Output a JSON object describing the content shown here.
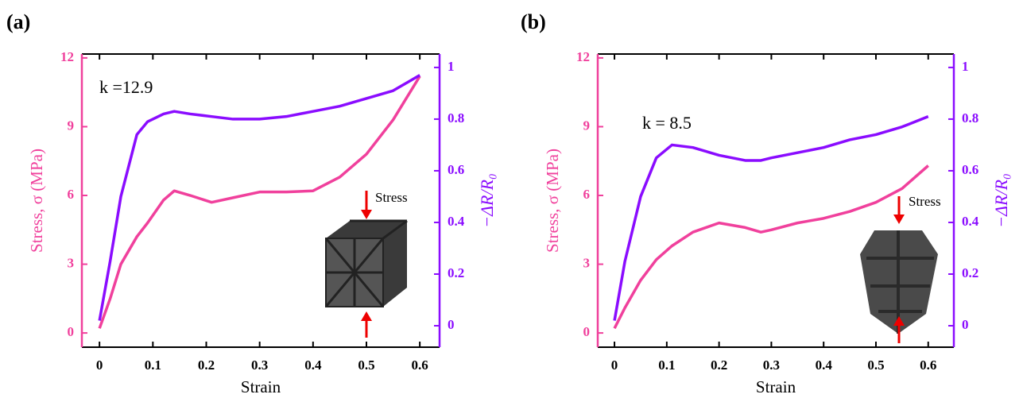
{
  "chart_data": [
    {
      "type": "line",
      "title": "(a)",
      "x_label": "Strain",
      "y_label": "Stress, σ (MPa)",
      "y2_label": "−ΔR/R₀",
      "annotations": [
        "k =12.9",
        "Stress"
      ],
      "x": [
        0,
        0.02,
        0.04,
        0.07,
        0.09,
        0.12,
        0.14,
        0.17,
        0.21,
        0.25,
        0.3,
        0.35,
        0.4,
        0.45,
        0.5,
        0.55,
        0.6
      ],
      "series": [
        {
          "name": "Stress",
          "color": "#f0409c",
          "axis": "y",
          "values": [
            0.2,
            1.5,
            3.0,
            4.2,
            4.8,
            5.8,
            6.2,
            6.0,
            5.7,
            5.9,
            6.15,
            6.15,
            6.2,
            6.8,
            7.8,
            9.3,
            11.2
          ]
        },
        {
          "name": "−ΔR/R₀",
          "color": "#8a0cff",
          "axis": "y2",
          "values": [
            0.02,
            0.25,
            0.5,
            0.74,
            0.79,
            0.82,
            0.83,
            0.82,
            0.81,
            0.8,
            0.8,
            0.81,
            0.83,
            0.85,
            0.88,
            0.91,
            0.97
          ]
        }
      ],
      "xlim": [
        -0.033,
        0.637
      ],
      "xticks": [
        0,
        0.1,
        0.2,
        0.3,
        0.4,
        0.5,
        0.6
      ],
      "ylim": [
        -0.62,
        12.17
      ],
      "yticks": [
        0,
        3,
        6,
        9,
        12
      ],
      "y2lim": [
        -0.083,
        1.052
      ],
      "y2ticks": [
        0,
        0.2,
        0.4,
        0.6,
        0.8,
        1
      ]
    },
    {
      "type": "line",
      "title": "(b)",
      "x_label": "Strain",
      "y_label": "Stress, σ (MPa)",
      "y2_label": "−ΔR/R₀",
      "annotations": [
        "k = 8.5",
        "Stress"
      ],
      "x": [
        0,
        0.02,
        0.05,
        0.08,
        0.11,
        0.15,
        0.2,
        0.25,
        0.28,
        0.3,
        0.35,
        0.4,
        0.45,
        0.5,
        0.55,
        0.6
      ],
      "series": [
        {
          "name": "Stress",
          "color": "#f0409c",
          "axis": "y",
          "values": [
            0.2,
            1.1,
            2.3,
            3.2,
            3.8,
            4.4,
            4.8,
            4.6,
            4.4,
            4.5,
            4.8,
            5.0,
            5.3,
            5.7,
            6.3,
            7.3
          ]
        },
        {
          "name": "−ΔR/R₀",
          "color": "#8a0cff",
          "axis": "y2",
          "values": [
            0.02,
            0.25,
            0.5,
            0.65,
            0.7,
            0.69,
            0.66,
            0.64,
            0.64,
            0.65,
            0.67,
            0.69,
            0.72,
            0.74,
            0.77,
            0.81
          ]
        }
      ],
      "xlim": [
        -0.032,
        0.649
      ],
      "xticks": [
        0,
        0.1,
        0.2,
        0.3,
        0.4,
        0.5,
        0.6
      ],
      "ylim": [
        -0.62,
        12.17
      ],
      "yticks": [
        0,
        3,
        6,
        9,
        12
      ],
      "y2lim": [
        -0.083,
        1.052
      ],
      "y2ticks": [
        0,
        0.2,
        0.4,
        0.6,
        0.8,
        1
      ]
    }
  ]
}
